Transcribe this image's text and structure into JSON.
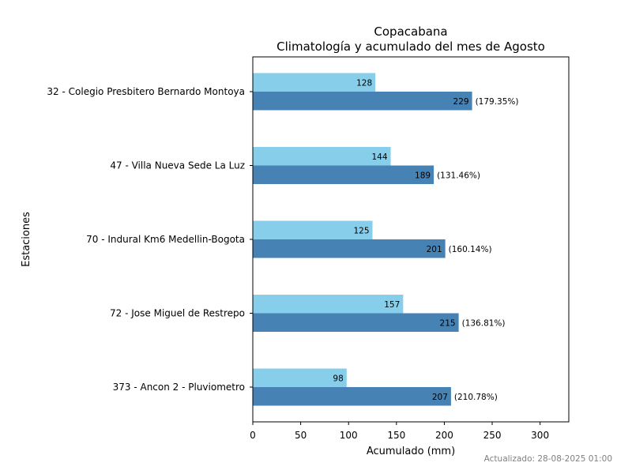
{
  "chart_data": {
    "type": "bar",
    "orientation": "horizontal",
    "title": "Copacabana",
    "subtitle": "Climatología y acumulado del mes de Agosto",
    "xlabel": "Acumulado (mm)",
    "ylabel": "Estaciones",
    "xlim": [
      0,
      330
    ],
    "xticks": [
      0,
      50,
      100,
      150,
      200,
      250,
      300
    ],
    "categories": [
      "32 - Colegio Presbitero Bernardo Montoya",
      "47 - Villa Nueva Sede La Luz",
      "70 - Indural Km6 Medellin-Bogota",
      "72 - Jose Miguel de Restrepo",
      "373 - Ancon 2 - Pluviometro"
    ],
    "series": [
      {
        "color": "#87ceeb",
        "values": [
          128,
          144,
          125,
          157,
          98
        ]
      },
      {
        "color": "#4682b4",
        "values": [
          229,
          189,
          201,
          215,
          207
        ]
      }
    ],
    "percent_labels": [
      "(179.35%)",
      "(131.46%)",
      "(160.14%)",
      "(136.81%)",
      "(210.78%)"
    ],
    "grid": false
  },
  "footer": "Actualizado: 28-08-2025 01:00"
}
